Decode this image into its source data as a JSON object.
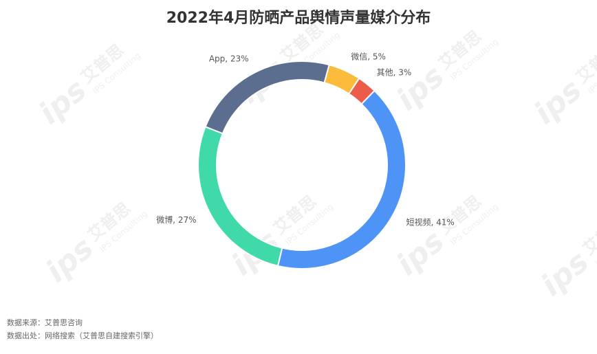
{
  "title": "2022年4月防晒产品舆情声量媒介分布",
  "source": {
    "line1": "数据来源：艾普思咨询",
    "line2": "数据出处：网络搜索（艾普思自建搜索引擎）"
  },
  "watermark": {
    "brand": "艾普思",
    "sub": "IPS Consulting",
    "logo": "ips"
  },
  "chart_data": {
    "type": "pie",
    "title": "2022年4月防晒产品舆情声量媒介分布",
    "slices": [
      {
        "name": "App",
        "value": 23,
        "label": "App, 23%",
        "color": "#5b6e8f"
      },
      {
        "name": "微信",
        "value": 5,
        "label": "微信, 5%",
        "color": "#fbbb3b"
      },
      {
        "name": "其他",
        "value": 3,
        "label": "其他, 3%",
        "color": "#eb5c4b"
      },
      {
        "name": "短视频",
        "value": 41,
        "label": "短视频, 41%",
        "color": "#4e93f6"
      },
      {
        "name": "微博",
        "value": 27,
        "label": "微博, 27%",
        "color": "#40d9aa"
      }
    ]
  }
}
